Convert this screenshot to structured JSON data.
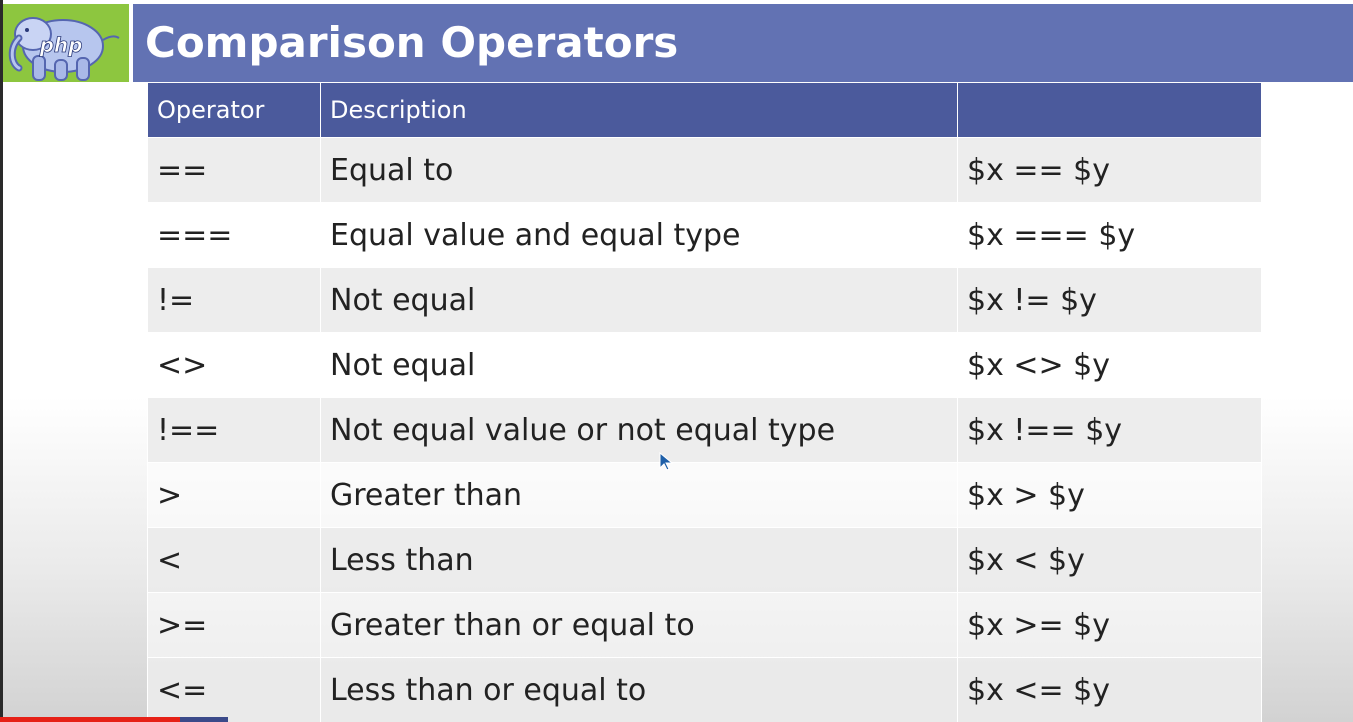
{
  "slide": {
    "title": "Comparison Operators",
    "logo_text": "php",
    "logo_icon": "php-elephant-icon"
  },
  "table": {
    "headers": [
      "Operator",
      "Description",
      ""
    ],
    "rows": [
      {
        "operator": "==",
        "description": "Equal to",
        "example": "$x == $y"
      },
      {
        "operator": "===",
        "description": "Equal value and equal type",
        "example": "$x === $y"
      },
      {
        "operator": "!=",
        "description": "Not equal",
        "example": "$x != $y"
      },
      {
        "operator": "<>",
        "description": "Not equal",
        "example": "$x <> $y"
      },
      {
        "operator": "!==",
        "description": "Not equal value or not equal type",
        "example": "$x !== $y"
      },
      {
        "operator": ">",
        "description": "Greater than",
        "example": "$x > $y"
      },
      {
        "operator": "<",
        "description": "Less than",
        "example": "$x < $y"
      },
      {
        "operator": ">=",
        "description": "Greater than or equal to",
        "example": "$x >= $y"
      },
      {
        "operator": "<=",
        "description": "Less than or equal to",
        "example": "$x <= $y"
      }
    ]
  },
  "colors": {
    "title_bar": "#6272b3",
    "header_row": "#4b5a9c",
    "logo_bg": "#8dc63f",
    "progress": "#e62117"
  }
}
